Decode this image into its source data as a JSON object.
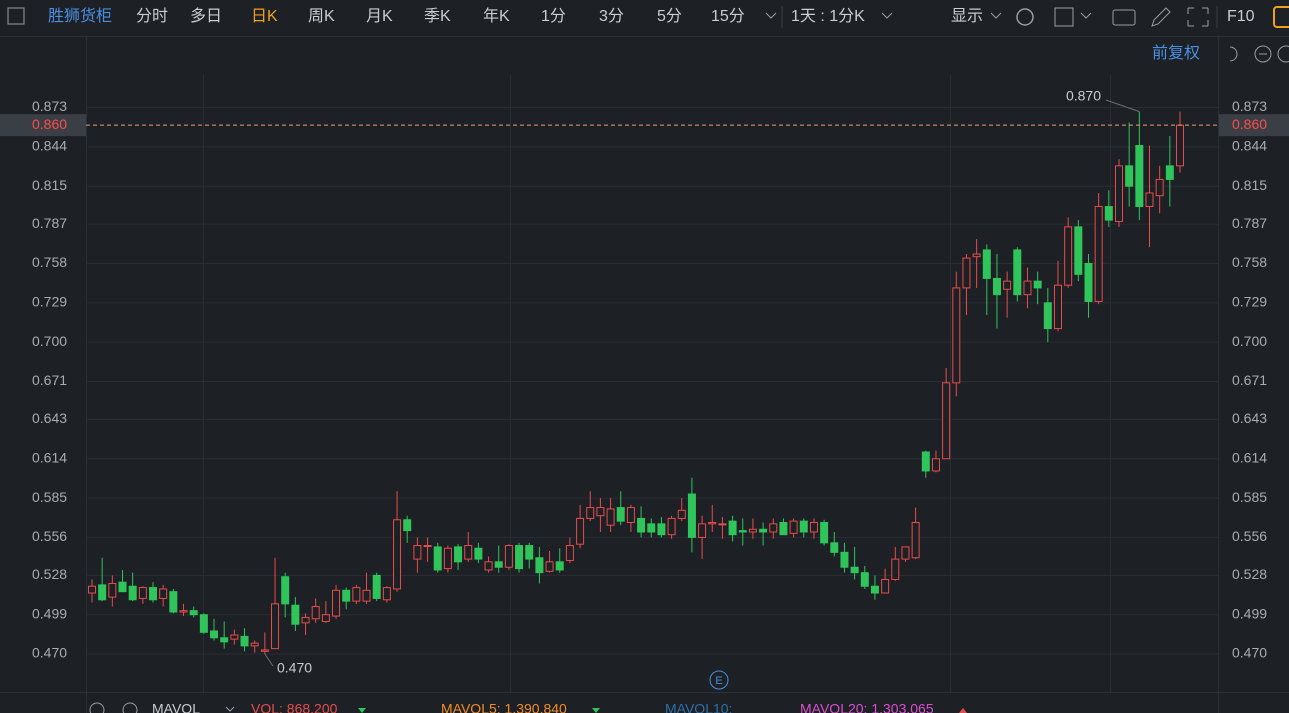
{
  "toolbar": {
    "symbol": "胜狮货柜",
    "tabs": [
      "分时",
      "多日",
      "日K",
      "周K",
      "月K",
      "季K",
      "年K",
      "1分",
      "3分",
      "5分",
      "15分"
    ],
    "period": "1天 : 1分K",
    "display": "显示",
    "f10": "F10",
    "adjust": "前复权"
  },
  "indicator": {
    "name": "MAVOL",
    "items": [
      {
        "text": "VOL: 868,200",
        "color": "#e84c4c"
      },
      {
        "text": "MAVOL5: 1,390,840",
        "color": "#f08c28"
      },
      {
        "text": "MAVOL10:",
        "color": "#2f6fa8"
      },
      {
        "text": "MAVOL20: 1,303,065",
        "color": "#d94fd0"
      }
    ]
  },
  "chart_data": {
    "type": "candlestick",
    "up_color": "#e84c4c",
    "down_color": "#2fc55b",
    "grid": true,
    "ylim": [
      0.442,
      0.897
    ],
    "yticks": [
      {
        "value": 0.47,
        "label": "0.470"
      },
      0.499,
      0.528,
      0.556,
      0.585,
      0.614,
      0.643,
      0.671,
      {
        "value": 0.7,
        "label": "0.700"
      },
      0.729,
      0.758,
      0.787,
      0.815,
      0.844,
      0.873
    ],
    "last_price": {
      "value": 0.86,
      "label": "0.860"
    },
    "max_label": {
      "value": 0.87,
      "label": "0.870"
    },
    "min_label": {
      "value": 0.47,
      "label": "0.470"
    },
    "open": [
      0.515,
      0.521,
      0.512,
      0.523,
      0.52,
      0.511,
      0.519,
      0.511,
      0.516,
      0.501,
      0.502,
      0.499,
      0.487,
      0.482,
      0.481,
      0.483,
      0.476,
      0.472,
      0.474,
      0.527,
      0.506,
      0.493,
      0.496,
      0.494,
      0.498,
      0.517,
      0.509,
      0.509,
      0.528,
      0.51,
      0.518,
      0.569,
      0.54,
      0.55,
      0.549,
      0.533,
      0.549,
      0.54,
      0.548,
      0.532,
      0.538,
      0.534,
      0.55,
      0.55,
      0.541,
      0.531,
      0.538,
      0.539,
      0.551,
      0.57,
      0.572,
      0.565,
      0.578,
      0.567,
      0.57,
      0.566,
      0.566,
      0.558,
      0.57,
      0.588,
      0.556,
      0.566,
      0.566,
      0.568,
      0.561,
      0.56,
      0.562,
      0.56,
      0.567,
      0.559,
      0.568,
      0.56,
      0.567,
      0.552,
      0.545,
      0.534,
      0.53,
      0.52,
      0.515,
      0.525,
      0.54,
      0.541,
      0.619,
      0.605,
      0.614,
      0.67,
      0.74,
      0.763,
      0.768,
      0.747,
      0.739,
      0.768,
      0.735,
      0.745,
      0.729,
      0.71,
      0.742,
      0.785,
      0.758,
      0.73,
      0.8,
      0.789,
      0.83,
      0.845,
      0.8,
      0.808,
      0.83,
      0.83
    ],
    "high": [
      0.525,
      0.541,
      0.528,
      0.532,
      0.53,
      0.52,
      0.523,
      0.521,
      0.518,
      0.507,
      0.505,
      0.5,
      0.496,
      0.494,
      0.488,
      0.489,
      0.48,
      0.486,
      0.541,
      0.53,
      0.512,
      0.5,
      0.511,
      0.509,
      0.521,
      0.519,
      0.521,
      0.53,
      0.53,
      0.52,
      0.59,
      0.572,
      0.556,
      0.556,
      0.552,
      0.55,
      0.551,
      0.56,
      0.552,
      0.542,
      0.55,
      0.551,
      0.552,
      0.552,
      0.549,
      0.546,
      0.548,
      0.556,
      0.58,
      0.59,
      0.585,
      0.585,
      0.59,
      0.58,
      0.579,
      0.57,
      0.571,
      0.572,
      0.585,
      0.6,
      0.572,
      0.58,
      0.571,
      0.572,
      0.57,
      0.57,
      0.567,
      0.57,
      0.57,
      0.57,
      0.57,
      0.57,
      0.569,
      0.56,
      0.552,
      0.549,
      0.535,
      0.528,
      0.533,
      0.549,
      0.548,
      0.578,
      0.62,
      0.62,
      0.681,
      0.752,
      0.765,
      0.776,
      0.772,
      0.765,
      0.752,
      0.77,
      0.755,
      0.752,
      0.74,
      0.76,
      0.792,
      0.79,
      0.765,
      0.81,
      0.812,
      0.835,
      0.862,
      0.87,
      0.845,
      0.83,
      0.852,
      0.87
    ],
    "low": [
      0.508,
      0.509,
      0.505,
      0.518,
      0.509,
      0.507,
      0.508,
      0.505,
      0.5,
      0.498,
      0.497,
      0.485,
      0.48,
      0.474,
      0.477,
      0.472,
      0.471,
      0.47,
      0.474,
      0.497,
      0.487,
      0.484,
      0.493,
      0.493,
      0.496,
      0.503,
      0.507,
      0.507,
      0.509,
      0.508,
      0.516,
      0.552,
      0.53,
      0.538,
      0.53,
      0.53,
      0.532,
      0.538,
      0.537,
      0.53,
      0.53,
      0.532,
      0.53,
      0.533,
      0.522,
      0.53,
      0.53,
      0.537,
      0.548,
      0.568,
      0.56,
      0.56,
      0.565,
      0.56,
      0.556,
      0.556,
      0.556,
      0.555,
      0.568,
      0.545,
      0.54,
      0.56,
      0.555,
      0.553,
      0.55,
      0.555,
      0.55,
      0.555,
      0.558,
      0.556,
      0.556,
      0.555,
      0.55,
      0.542,
      0.53,
      0.525,
      0.518,
      0.51,
      0.515,
      0.524,
      0.538,
      0.54,
      0.6,
      0.604,
      0.614,
      0.66,
      0.72,
      0.74,
      0.72,
      0.71,
      0.718,
      0.73,
      0.725,
      0.728,
      0.7,
      0.708,
      0.74,
      0.745,
      0.718,
      0.728,
      0.785,
      0.785,
      0.8,
      0.79,
      0.77,
      0.795,
      0.8,
      0.825
    ],
    "close": [
      0.52,
      0.51,
      0.522,
      0.516,
      0.51,
      0.519,
      0.51,
      0.518,
      0.501,
      0.502,
      0.499,
      0.486,
      0.482,
      0.479,
      0.484,
      0.476,
      0.478,
      0.473,
      0.507,
      0.507,
      0.492,
      0.497,
      0.505,
      0.499,
      0.517,
      0.509,
      0.519,
      0.517,
      0.511,
      0.519,
      0.569,
      0.561,
      0.55,
      0.55,
      0.532,
      0.548,
      0.538,
      0.55,
      0.54,
      0.538,
      0.534,
      0.55,
      0.533,
      0.54,
      0.53,
      0.538,
      0.532,
      0.55,
      0.57,
      0.578,
      0.578,
      0.577,
      0.568,
      0.578,
      0.56,
      0.56,
      0.558,
      0.57,
      0.576,
      0.556,
      0.566,
      0.567,
      0.566,
      0.558,
      0.56,
      0.562,
      0.56,
      0.566,
      0.558,
      0.568,
      0.56,
      0.567,
      0.552,
      0.545,
      0.534,
      0.53,
      0.52,
      0.515,
      0.525,
      0.54,
      0.549,
      0.567,
      0.605,
      0.614,
      0.67,
      0.74,
      0.762,
      0.765,
      0.747,
      0.735,
      0.745,
      0.735,
      0.745,
      0.74,
      0.71,
      0.742,
      0.785,
      0.75,
      0.73,
      0.8,
      0.79,
      0.83,
      0.815,
      0.8,
      0.81,
      0.82,
      0.82,
      0.86
    ]
  }
}
